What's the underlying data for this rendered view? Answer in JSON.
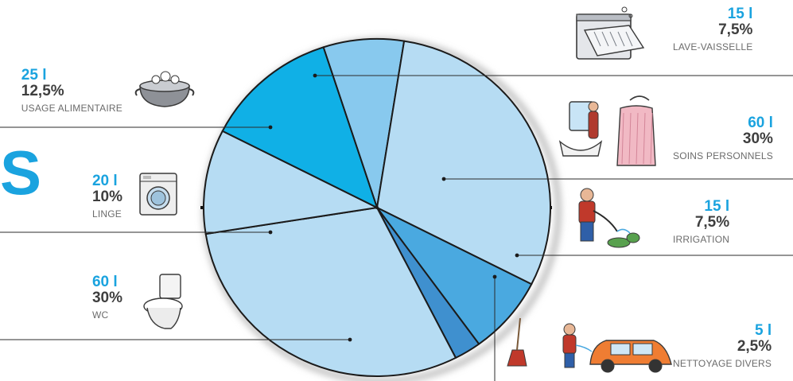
{
  "heading_fragment": "S",
  "colors": {
    "light": "#b6dcf3",
    "mid": "#88c9ee",
    "accent": "#10b0e6",
    "blue": "#4aa9e0",
    "dark": "#3f90cf",
    "volume": "#1aa3df"
  },
  "chart_data": {
    "type": "pie",
    "unit": "l",
    "slices": [
      {
        "name": "LAVE-VAISSELLE",
        "volume": "15 l",
        "percent": "7,5%",
        "liters": 15,
        "value": 7.5,
        "icon": "dishwasher-icon",
        "color": "mid"
      },
      {
        "name": "SOINS PERSONNELS",
        "volume": "60 l",
        "percent": "30%",
        "liters": 60,
        "value": 30,
        "icon": "bathroom-icon",
        "color": "light"
      },
      {
        "name": "IRRIGATION",
        "volume": "15 l",
        "percent": "7,5%",
        "liters": 15,
        "value": 7.5,
        "icon": "watering-icon",
        "color": "blue"
      },
      {
        "name": "NETTOYAGE DIVERS",
        "volume": "5 l",
        "percent": "2,5%",
        "liters": 5,
        "value": 2.5,
        "icon": "car-wash-icon",
        "color": "dark"
      },
      {
        "name": "WC",
        "volume": "60 l",
        "percent": "30%",
        "liters": 60,
        "value": 30,
        "icon": "toilet-icon",
        "color": "light"
      },
      {
        "name": "LINGE",
        "volume": "20 l",
        "percent": "10%",
        "liters": 20,
        "value": 10,
        "icon": "washing-machine-icon",
        "color": "light"
      },
      {
        "name": "USAGE ALIMENTAIRE",
        "volume": "25 l",
        "percent": "12,5%",
        "liters": 25,
        "value": 12.5,
        "icon": "cooking-pot-icon",
        "color": "accent"
      }
    ]
  }
}
